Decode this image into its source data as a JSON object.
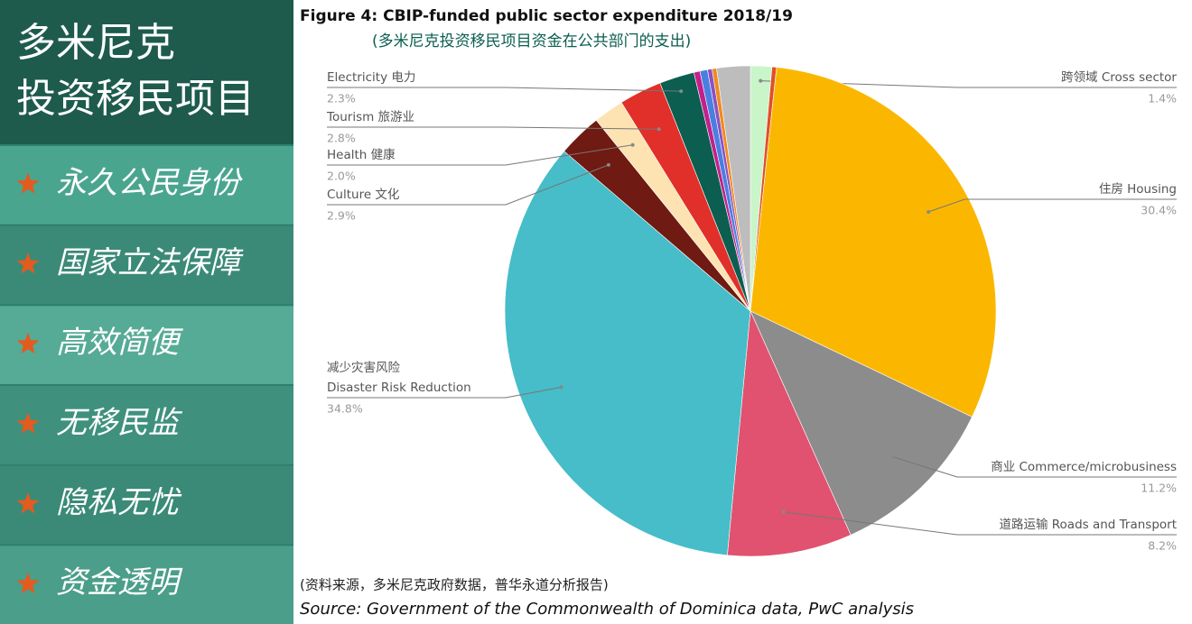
{
  "sidebar": {
    "title": [
      "多米尼克",
      "投资移民项目"
    ],
    "items": [
      "永久公民身份",
      "国家立法保障",
      "高效简便",
      "无移民监",
      "隐私无忧",
      "资金透明"
    ]
  },
  "chart_data": {
    "type": "pie",
    "title": "Figure 4: CBIP-funded public sector expenditure 2018/19",
    "subtitle": "(多米尼克投资移民项目资金在公共部门的支出)",
    "categories": [
      "跨领域 Cross sector",
      null,
      "住房 Housing",
      "商业 Commerce/microbusiness",
      "道路运输 Roads and Transport",
      [
        "减少灾害风险",
        "Disaster Risk Reduction"
      ],
      "Culture 文化",
      "Health 健康",
      "Tourism 旅游业",
      "Electricity 电力",
      null,
      null,
      null,
      null,
      null
    ],
    "values": [
      1.4,
      0.3,
      30.4,
      11.2,
      8.2,
      34.8,
      2.9,
      2.0,
      2.8,
      2.3,
      0.4,
      0.5,
      0.3,
      0.3,
      2.2
    ],
    "value_labels": [
      "1.4%",
      null,
      "30.4%",
      "11.2%",
      "8.2%",
      "34.8%",
      "2.9%",
      "2.0%",
      "2.8%",
      "2.3%",
      null,
      null,
      null,
      null,
      null
    ],
    "colors": [
      "#c9f5c9",
      "#e0502a",
      "#fbb700",
      "#8c8c8c",
      "#e0526f",
      "#46bdc8",
      "#6f1a12",
      "#fde3b2",
      "#e12f2a",
      "#0b5e50",
      "#c2208b",
      "#4a7fe0",
      "#8b52c2",
      "#f08a20",
      "#bdbdbd"
    ],
    "source_note": "(资料来源，多米尼克政府数据，普华永道分析报告)",
    "source": "Source: Government of the Commonwealth of Dominica data, PwC analysis"
  }
}
